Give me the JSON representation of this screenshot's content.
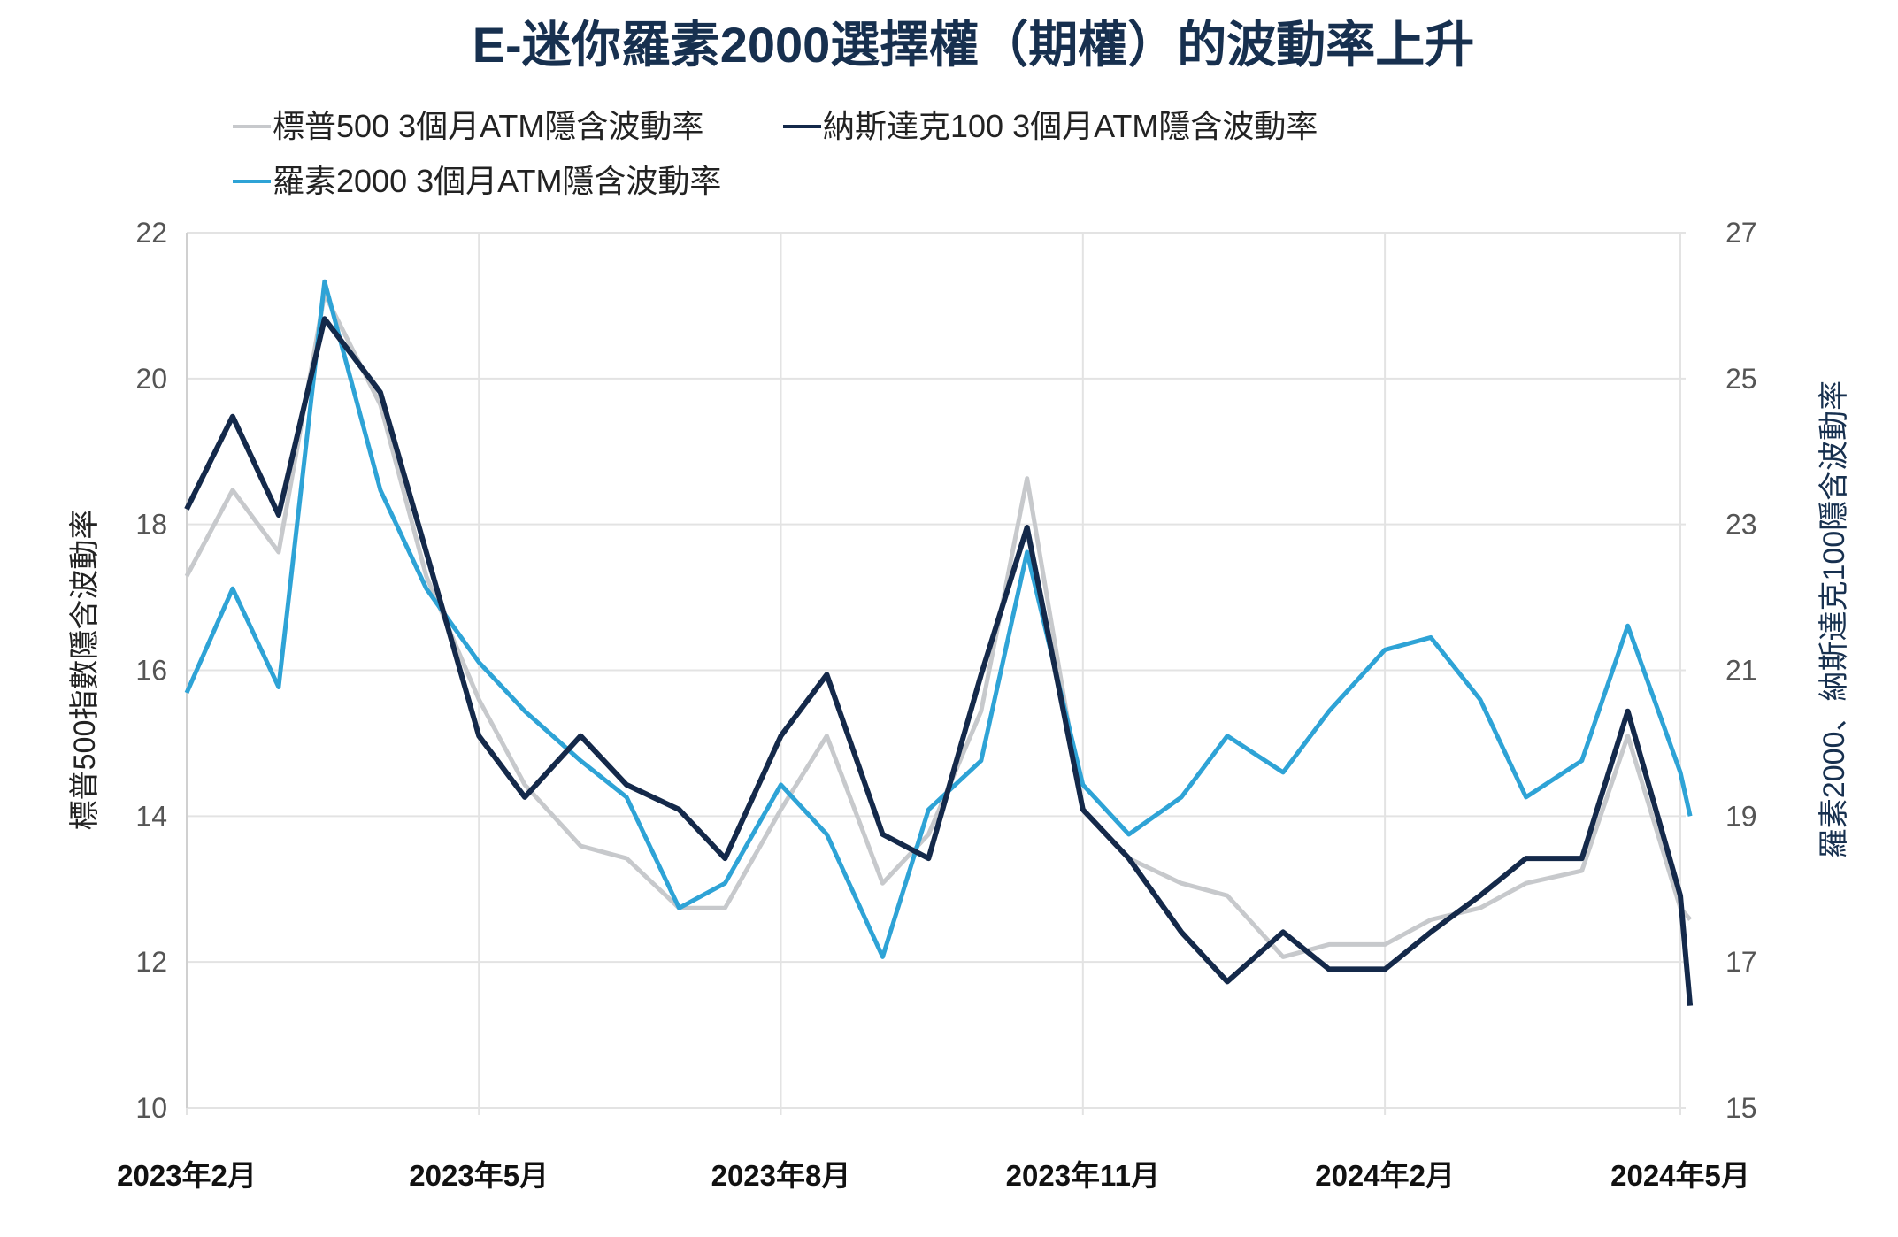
{
  "chart_data": {
    "type": "line",
    "title": "E-迷你羅素2000選擇權（期權）的波動率上升",
    "ylabel_left": "標普500指數隱含波動率",
    "ylabel_right": "羅素2000、納斯達克100隱含波動率",
    "ylim_left": [
      10,
      22
    ],
    "ylim_right": [
      15,
      27
    ],
    "yticks_left": [
      "10",
      "12",
      "14",
      "16",
      "18",
      "20",
      "22"
    ],
    "yticks_right": [
      "15",
      "17",
      "19",
      "21",
      "23",
      "25",
      "27"
    ],
    "xticks": [
      {
        "date": "2023-02-01",
        "label": "2023年2月"
      },
      {
        "date": "2023-05-01",
        "label": "2023年5月"
      },
      {
        "date": "2023-08-01",
        "label": "2023年8月"
      },
      {
        "date": "2023-11-01",
        "label": "2023年11月"
      },
      {
        "date": "2024-02-01",
        "label": "2024年2月"
      },
      {
        "date": "2024-05-01",
        "label": "2024年5月"
      }
    ],
    "grid": true,
    "legend_position": "top-left",
    "x": [
      "2023-02-01",
      "2023-02-15",
      "2023-03-01",
      "2023-03-15",
      "2023-04-01",
      "2023-04-15",
      "2023-05-01",
      "2023-05-15",
      "2023-06-01",
      "2023-06-15",
      "2023-07-01",
      "2023-07-15",
      "2023-08-01",
      "2023-08-15",
      "2023-09-01",
      "2023-09-15",
      "2023-10-01",
      "2023-10-15",
      "2023-11-01",
      "2023-11-15",
      "2023-12-01",
      "2023-12-15",
      "2024-01-01",
      "2024-01-15",
      "2024-02-01",
      "2024-02-15",
      "2024-03-01",
      "2024-03-15",
      "2024-04-01",
      "2024-04-15",
      "2024-05-01",
      "2024-05-04"
    ],
    "series": [
      {
        "name": "標普500 3個月ATM隱含波動率",
        "axis": "left",
        "color": "#c7c9cc",
        "values": [
          17.29,
          18.47,
          17.62,
          21.16,
          19.64,
          17.29,
          15.6,
          14.43,
          13.59,
          13.42,
          12.74,
          12.74,
          14.09,
          15.1,
          13.08,
          13.75,
          15.44,
          18.63,
          14.09,
          13.42,
          13.08,
          12.91,
          12.07,
          12.24,
          12.24,
          12.58,
          12.74,
          13.08,
          13.25,
          15.1,
          12.74,
          12.58
        ]
      },
      {
        "name": "納斯達克100 3個月ATM隱含波動率",
        "axis": "right",
        "color": "#14294a",
        "values": [
          23.21,
          24.48,
          23.13,
          25.82,
          24.81,
          22.62,
          20.1,
          19.26,
          20.1,
          19.43,
          19.09,
          18.42,
          20.1,
          20.94,
          18.75,
          18.42,
          20.94,
          22.96,
          19.09,
          18.42,
          17.41,
          16.73,
          17.41,
          16.9,
          16.9,
          17.41,
          17.91,
          18.42,
          18.42,
          20.44,
          17.91,
          16.4
        ]
      },
      {
        "name": "羅素2000 3個月ATM隱含波動率",
        "axis": "right",
        "color": "#2ea3d6",
        "values": [
          20.69,
          22.12,
          20.77,
          26.33,
          23.47,
          22.12,
          21.11,
          20.44,
          19.76,
          19.26,
          17.74,
          18.08,
          19.43,
          18.75,
          17.07,
          19.09,
          19.76,
          22.62,
          19.43,
          18.75,
          19.26,
          20.1,
          19.6,
          20.44,
          21.28,
          21.45,
          20.6,
          19.26,
          19.76,
          21.61,
          19.6,
          19.0
        ]
      }
    ]
  }
}
